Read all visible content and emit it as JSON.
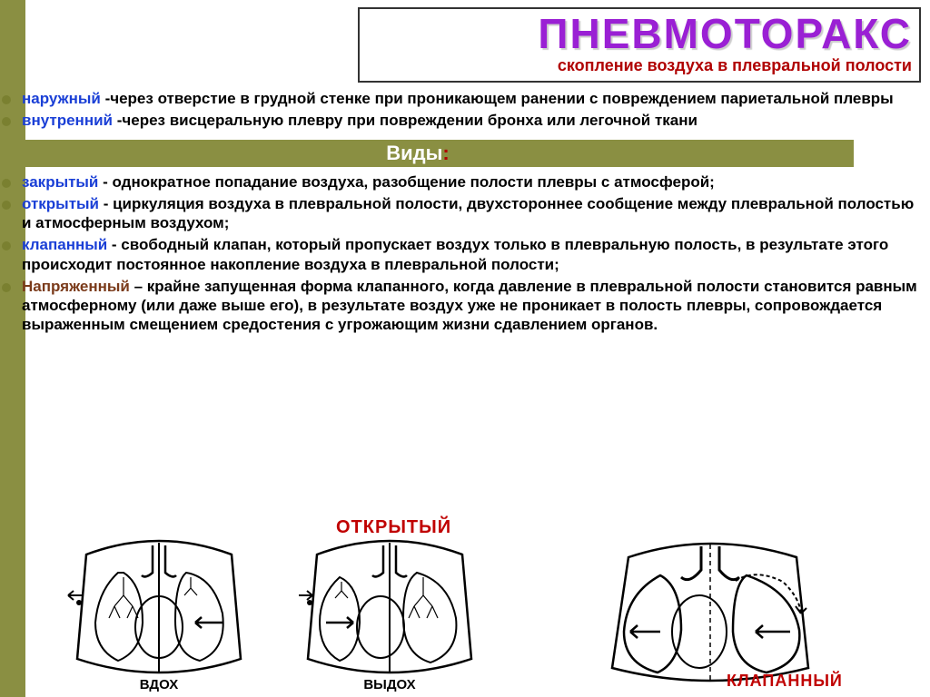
{
  "header": {
    "title": "ПНЕВМОТОРАКС",
    "subtitle": "скопление воздуха в плевральной полости"
  },
  "intro": {
    "outer_key": "наружный",
    "outer_text": " -через отверстие в грудной стенке при проникающем ранении с повреждением париетальной плевры",
    "inner_key": "внутренний",
    "inner_text": " -через висцеральную плевру при повреждении бронха или легочной ткани"
  },
  "types_label": "Виды",
  "types_colon": ":",
  "types": [
    {
      "key": "закрытый",
      "keycolor": "#1a3fd6",
      "text": " -  однократное попадание воздуха, разобщение полости плевры с атмосферой;"
    },
    {
      "key": "открытый",
      "keycolor": "#1a3fd6",
      "text": " - циркуляция воздуха в плевральной полости, двухстороннее сообщение между плевральной полостью и атмосферным воздухом;"
    },
    {
      "key": "клапанный",
      "keycolor": "#1a3fd6",
      "text": " - свободный клапан, который пропускает воздух только в плевральную полость, в результате этого происходит постоянное накопление воздуха в плевральной полости;"
    },
    {
      "key": "Напряженный",
      "keycolor": "#7a3a1a",
      "text": " – крайне запущенная форма клапанного, когда давление в плевральной полости становится равным атмосферному (или даже выше его), в результате воздух уже не проникает в полость плевры, сопровождается выраженным смещением средостения с угрожающим жизни сдавлением органов."
    }
  ],
  "diagram_labels": {
    "open": "ОТКРЫТЫЙ",
    "inhale": "ВДОХ",
    "exhale": "ВЫДОХ",
    "valve": "КЛАПАННЫЙ"
  },
  "colors": {
    "olive": "#8a8f42",
    "purple": "#9a20d4",
    "red": "#c00000",
    "blue": "#1a3fd6",
    "brown": "#7a3a1a"
  }
}
